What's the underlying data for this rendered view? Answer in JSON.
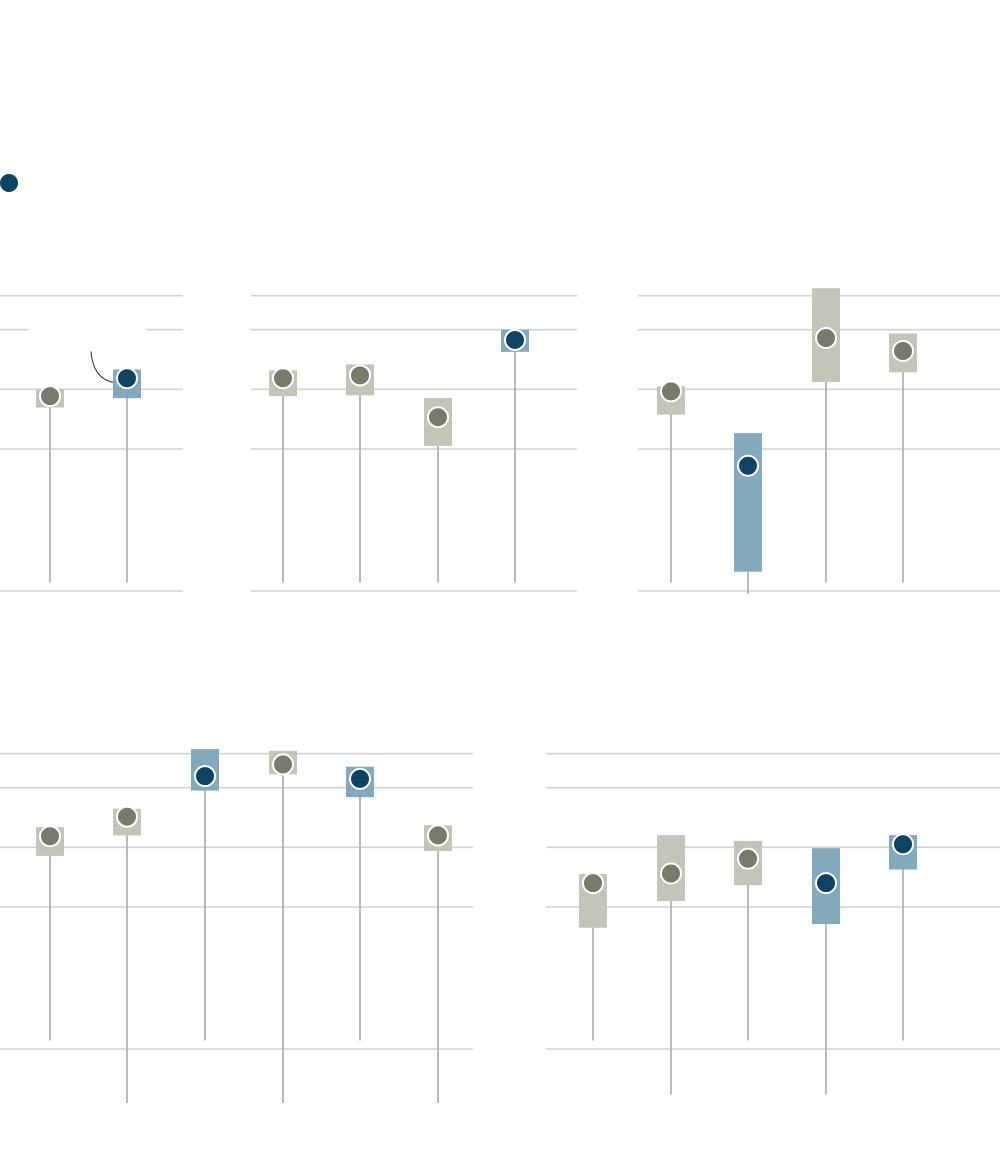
{
  "colors": {
    "highlight_dot": "#0d4364",
    "highlight_range": "#83a9bd",
    "normal_dot": "#7a7a6c",
    "normal_range": "#c4c4bb",
    "gridline": "#d2d2d2",
    "stem": "#a9a9a9",
    "dot_outline": "#ffffff",
    "annotation_line": "#444444"
  },
  "legend": {
    "marker_icon": "filled-circle-icon",
    "color": "#0d4364"
  },
  "chart_data": [
    {
      "type": "dot-range",
      "title": "",
      "xlabel": "",
      "ylabel": "",
      "grid": true,
      "ylim": [
        0,
        104
      ],
      "gridlines": [
        0,
        50,
        71,
        92,
        104
      ],
      "points": [
        {
          "value": 68.6,
          "low": 64.6,
          "high": 71.0,
          "baseline": 3,
          "highlight": false
        },
        {
          "value": 74.9,
          "low": 67.9,
          "high": 78.0,
          "baseline": 3,
          "highlight": true,
          "annotated": true
        }
      ]
    },
    {
      "type": "dot-range",
      "title": "",
      "xlabel": "",
      "ylabel": "",
      "grid": true,
      "ylim": [
        0,
        104
      ],
      "gridlines": [
        0,
        50,
        71,
        92,
        104
      ],
      "points": [
        {
          "value": 74.9,
          "low": 68.6,
          "high": 77.7,
          "baseline": 3,
          "highlight": false
        },
        {
          "value": 75.9,
          "low": 68.9,
          "high": 79.8,
          "baseline": 3,
          "highlight": false
        },
        {
          "value": 61.2,
          "low": 51.1,
          "high": 68.0,
          "baseline": 3,
          "highlight": false
        },
        {
          "value": 88.4,
          "low": 84.2,
          "high": 92.0,
          "baseline": 3,
          "highlight": true
        }
      ]
    },
    {
      "type": "dot-range",
      "title": "",
      "xlabel": "",
      "ylabel": "",
      "grid": true,
      "ylim": [
        0,
        104
      ],
      "gridlines": [
        0,
        50,
        71,
        92,
        104
      ],
      "points": [
        {
          "value": 70.3,
          "low": 62.1,
          "high": 72.1,
          "baseline": 3,
          "highlight": false
        },
        {
          "value": 44.1,
          "low": 6.8,
          "high": 55.6,
          "baseline": -1,
          "highlight": true
        },
        {
          "value": 89.1,
          "low": 73.6,
          "high": 106.6,
          "baseline": 3,
          "highlight": false
        },
        {
          "value": 84.5,
          "low": 77.0,
          "high": 90.7,
          "baseline": 3,
          "highlight": false
        }
      ]
    },
    {
      "type": "dot-range",
      "title": "",
      "xlabel": "",
      "ylabel": "",
      "grid": true,
      "ylim": [
        -20,
        104
      ],
      "gridlines": [
        0,
        50,
        71,
        92,
        104
      ],
      "points": [
        {
          "value": 74.9,
          "low": 68.0,
          "high": 78.1,
          "baseline": 3,
          "highlight": false
        },
        {
          "value": 81.8,
          "low": 75.2,
          "high": 84.6,
          "baseline": -19,
          "highlight": false
        },
        {
          "value": 96.1,
          "low": 91.0,
          "high": 105.6,
          "baseline": 3,
          "highlight": true
        },
        {
          "value": 100.2,
          "low": 96.7,
          "high": 105.0,
          "baseline": -19,
          "highlight": false
        },
        {
          "value": 95.1,
          "low": 88.7,
          "high": 99.4,
          "baseline": 3,
          "highlight": true
        },
        {
          "value": 75.2,
          "low": 69.7,
          "high": 78.8,
          "baseline": -19,
          "highlight": false
        }
      ]
    },
    {
      "type": "dot-range",
      "title": "",
      "xlabel": "",
      "ylabel": "",
      "grid": true,
      "ylim": [
        -20,
        104
      ],
      "gridlines": [
        0,
        50,
        71,
        92,
        104
      ],
      "points": [
        {
          "value": 58.4,
          "low": 42.7,
          "high": 61.6,
          "baseline": 3,
          "highlight": false
        },
        {
          "value": 61.8,
          "low": 52.1,
          "high": 75.3,
          "baseline": -16,
          "highlight": false
        },
        {
          "value": 67.0,
          "low": 57.7,
          "high": 73.3,
          "baseline": 3,
          "highlight": false
        },
        {
          "value": 58.4,
          "low": 44.0,
          "high": 70.7,
          "baseline": -16,
          "highlight": true
        },
        {
          "value": 72.1,
          "low": 63.2,
          "high": 75.3,
          "baseline": 3,
          "highlight": true
        }
      ]
    }
  ]
}
